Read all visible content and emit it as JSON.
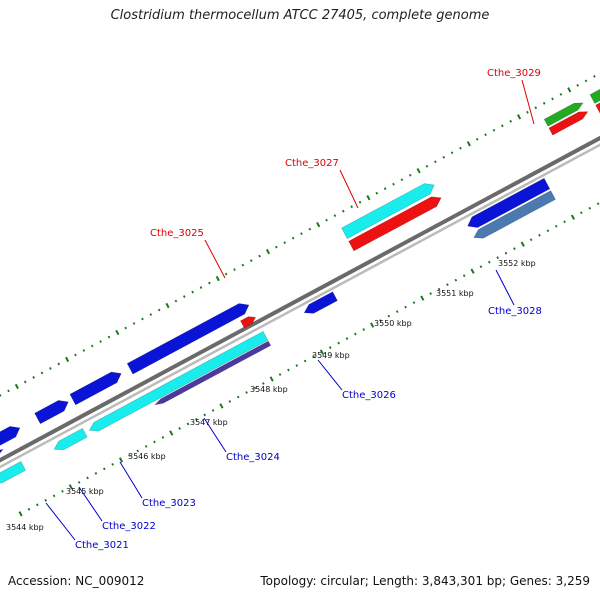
{
  "title": "Clostridium thermocellum ATCC 27405, complete genome",
  "footer": {
    "accession": "Accession: NC_009012",
    "summary": "Topology: circular; Length: 3,843,301 bp; Genes: 3,259"
  },
  "colors": {
    "backbone": "#888888",
    "tick": "#1a7a1a",
    "label_forward": "#dd0000",
    "label_reverse": "#0000cc",
    "blue": "#0a14d6",
    "cyan": "#19ecec",
    "red": "#ee1111",
    "green": "#22aa22",
    "steelblue": "#4a7ab0",
    "purple": "#4a3aa0"
  },
  "ruler": {
    "labels": [
      "3544 kbp",
      "3545 kbp",
      "3546 kbp",
      "3547 kbp",
      "3548 kbp",
      "3549 kbp",
      "3550 kbp",
      "3551 kbp",
      "3552 kbp"
    ]
  },
  "gene_labels": [
    {
      "name": "Cthe_3025",
      "strand": "forward"
    },
    {
      "name": "Cthe_3027",
      "strand": "forward"
    },
    {
      "name": "Cthe_3029",
      "strand": "forward"
    },
    {
      "name": "Cthe_3021",
      "strand": "reverse"
    },
    {
      "name": "Cthe_3022",
      "strand": "reverse"
    },
    {
      "name": "Cthe_3023",
      "strand": "reverse"
    },
    {
      "name": "Cthe_3024",
      "strand": "reverse"
    },
    {
      "name": "Cthe_3026",
      "strand": "reverse"
    },
    {
      "name": "Cthe_3028",
      "strand": "reverse"
    }
  ]
}
